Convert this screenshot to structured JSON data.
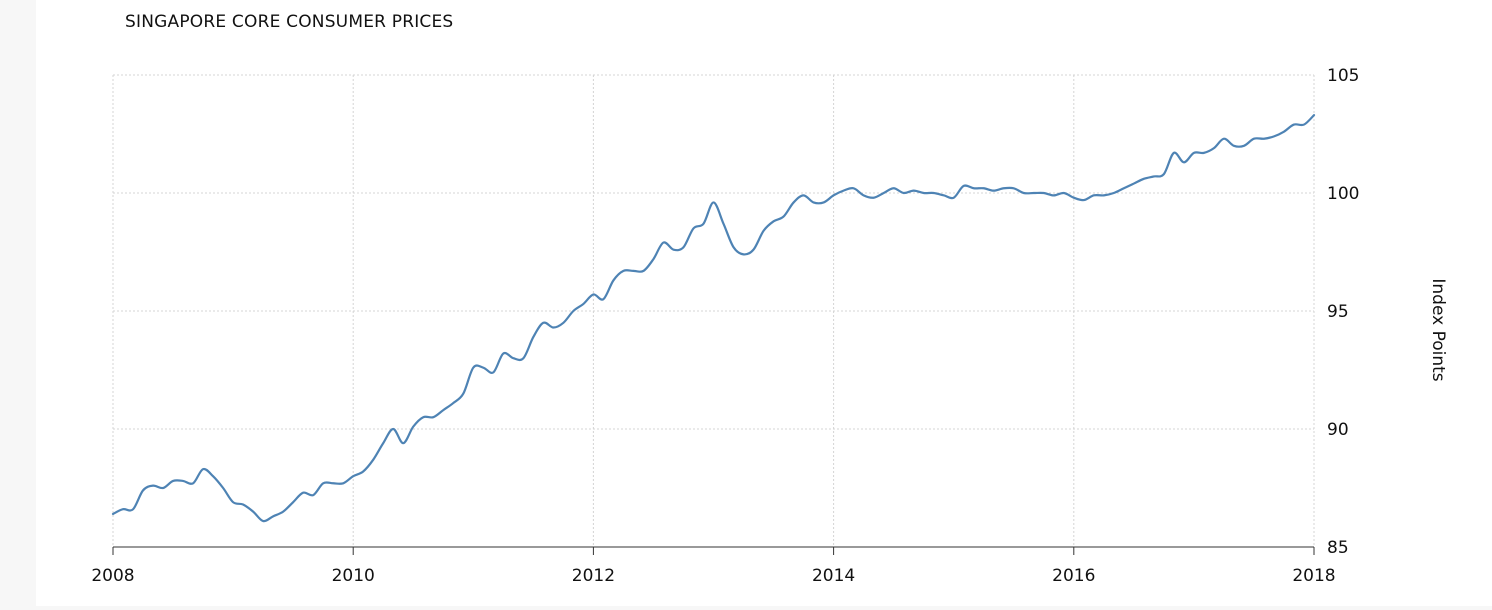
{
  "chart_data": {
    "type": "line",
    "title": "SINGAPORE CORE CONSUMER PRICES",
    "ylabel": "Index Points",
    "xlabel": "",
    "xlim": [
      2008,
      2018
    ],
    "ylim": [
      85,
      105
    ],
    "x_ticks": [
      "2008",
      "2010",
      "2012",
      "2014",
      "2016",
      "2018"
    ],
    "y_ticks": [
      "85",
      "90",
      "95",
      "100",
      "105"
    ],
    "grid": true,
    "legend": "none",
    "series": [
      {
        "color": "#4e83b4",
        "x": [
          2008.0,
          2008.083,
          2008.167,
          2008.25,
          2008.333,
          2008.417,
          2008.5,
          2008.583,
          2008.667,
          2008.75,
          2008.833,
          2008.917,
          2009.0,
          2009.083,
          2009.167,
          2009.25,
          2009.333,
          2009.417,
          2009.5,
          2009.583,
          2009.667,
          2009.75,
          2009.833,
          2009.917,
          2010.0,
          2010.083,
          2010.167,
          2010.25,
          2010.333,
          2010.417,
          2010.5,
          2010.583,
          2010.667,
          2010.75,
          2010.833,
          2010.917,
          2011.0,
          2011.083,
          2011.167,
          2011.25,
          2011.333,
          2011.417,
          2011.5,
          2011.583,
          2011.667,
          2011.75,
          2011.833,
          2011.917,
          2012.0,
          2012.083,
          2012.167,
          2012.25,
          2012.333,
          2012.417,
          2012.5,
          2012.583,
          2012.667,
          2012.75,
          2012.833,
          2012.917,
          2013.0,
          2013.083,
          2013.167,
          2013.25,
          2013.333,
          2013.417,
          2013.5,
          2013.583,
          2013.667,
          2013.75,
          2013.833,
          2013.917,
          2014.0,
          2014.083,
          2014.167,
          2014.25,
          2014.333,
          2014.417,
          2014.5,
          2014.583,
          2014.667,
          2014.75,
          2014.833,
          2014.917,
          2015.0,
          2015.083,
          2015.167,
          2015.25,
          2015.333,
          2015.417,
          2015.5,
          2015.583,
          2015.667,
          2015.75,
          2015.833,
          2015.917,
          2016.0,
          2016.083,
          2016.167,
          2016.25,
          2016.333,
          2016.417,
          2016.5,
          2016.583,
          2016.667,
          2016.75,
          2016.833,
          2016.917,
          2017.0,
          2017.083,
          2017.167,
          2017.25,
          2017.333,
          2017.417,
          2017.5,
          2017.583,
          2017.667,
          2017.75,
          2017.833,
          2017.917,
          2018.0
        ],
        "values": [
          86.4,
          86.6,
          86.6,
          87.4,
          87.6,
          87.5,
          87.8,
          87.8,
          87.7,
          88.3,
          88.0,
          87.5,
          86.9,
          86.8,
          86.5,
          86.1,
          86.3,
          86.5,
          86.9,
          87.3,
          87.2,
          87.7,
          87.7,
          87.7,
          88.0,
          88.2,
          88.7,
          89.4,
          90.0,
          89.4,
          90.1,
          90.5,
          90.5,
          90.8,
          91.1,
          91.5,
          92.6,
          92.6,
          92.4,
          93.2,
          93.0,
          93.0,
          93.9,
          94.5,
          94.3,
          94.5,
          95.0,
          95.3,
          95.7,
          95.5,
          96.3,
          96.7,
          96.7,
          96.7,
          97.2,
          97.9,
          97.6,
          97.7,
          98.5,
          98.7,
          99.6,
          98.7,
          97.7,
          97.4,
          97.6,
          98.4,
          98.8,
          99.0,
          99.6,
          99.9,
          99.6,
          99.6,
          99.9,
          100.1,
          100.2,
          99.9,
          99.8,
          100.0,
          100.2,
          100.0,
          100.1,
          100.0,
          100.0,
          99.9,
          99.8,
          100.3,
          100.2,
          100.2,
          100.1,
          100.2,
          100.2,
          100.0,
          100.0,
          100.0,
          99.9,
          100.0,
          99.8,
          99.7,
          99.9,
          99.9,
          100.0,
          100.2,
          100.4,
          100.6,
          100.7,
          100.8,
          101.7,
          101.3,
          101.7,
          101.7,
          101.9,
          102.3,
          102.0,
          102.0,
          102.3,
          102.3,
          102.4,
          102.6,
          102.9,
          102.9,
          103.3
        ]
      }
    ]
  }
}
